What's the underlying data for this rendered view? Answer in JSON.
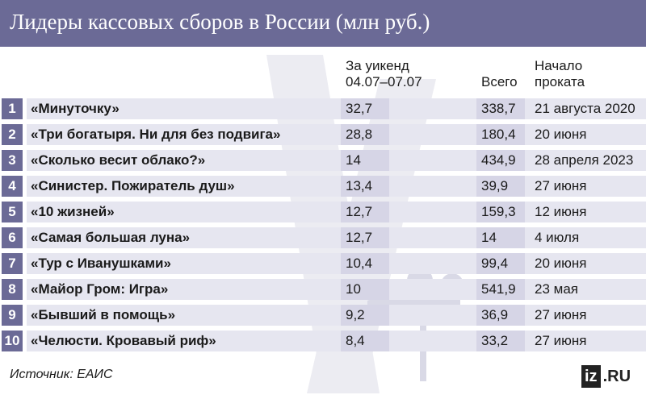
{
  "title": "Лидеры кассовых сборов в России (млн руб.)",
  "headers": {
    "weekend": "За уикенд",
    "weekend_dates": "04.07–07.07",
    "total": "Всего",
    "start_line1": "Начало",
    "start_line2": "проката"
  },
  "rows": [
    {
      "rank": "1",
      "film": "«Минуточку»",
      "weekend": "32,7",
      "total": "338,7",
      "start": "21 августа 2020"
    },
    {
      "rank": "2",
      "film": "«Три богатыря. Ни для без подвига»",
      "weekend": "28,8",
      "total": "180,4",
      "start": "20 июня"
    },
    {
      "rank": "3",
      "film": "«Сколько весит облако?»",
      "weekend": "14",
      "total": "434,9",
      "start": "28 апреля 2023"
    },
    {
      "rank": "4",
      "film": "«Синистер. Пожиратель душ»",
      "weekend": "13,4",
      "total": "39,9",
      "start": "27 июня"
    },
    {
      "rank": "5",
      "film": "«10 жизней»",
      "weekend": "12,7",
      "total": "159,3",
      "start": "12 июня"
    },
    {
      "rank": "6",
      "film": "«Самая большая луна»",
      "weekend": "12,7",
      "total": "14",
      "start": "4 июля"
    },
    {
      "rank": "7",
      "film": "«Тур с Иванушками»",
      "weekend": "10,4",
      "total": "99,4",
      "start": "20 июня"
    },
    {
      "rank": "8",
      "film": "«Майор Гром: Игра»",
      "weekend": "10",
      "total": "541,9",
      "start": "23 мая"
    },
    {
      "rank": "9",
      "film": "«Бывший в помощь»",
      "weekend": "9,2",
      "total": "36,9",
      "start": "27 июня"
    },
    {
      "rank": "10",
      "film": "«Челюсти. Кровавый риф»",
      "weekend": "8,4",
      "total": "33,2",
      "start": "27 июня"
    }
  ],
  "source": "Источник: ЕАИС",
  "logo": {
    "part1": "iz",
    "part2": ".RU"
  },
  "colors": {
    "accent": "#6b6a96",
    "band": "#e6e6f0",
    "column_shade": "#d6d5e6"
  }
}
